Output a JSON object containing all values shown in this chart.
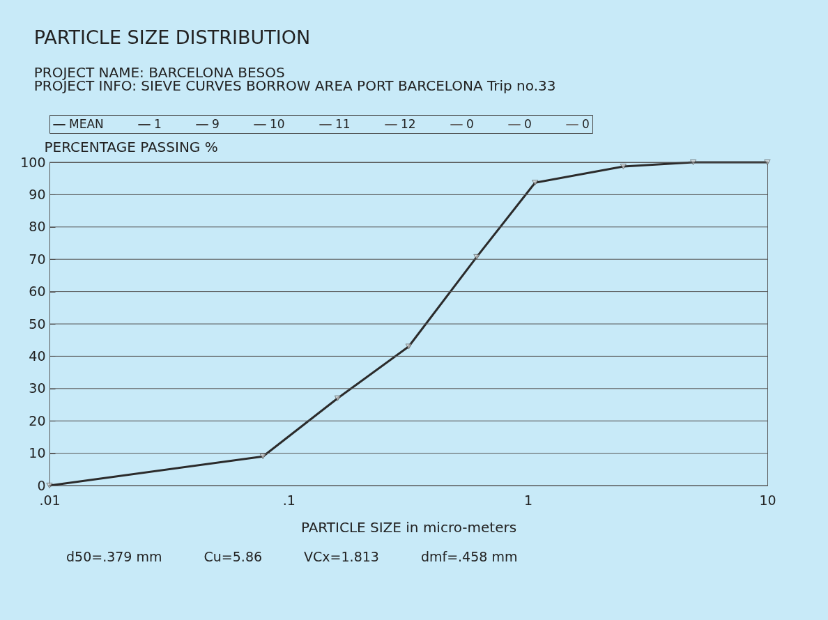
{
  "chart_data": {
    "type": "line",
    "title": "PARTICLE SIZE DISTRIBUTION",
    "subtitle": "PROJECT NAME: BARCELONA BESOS\nPROJECT INFO: SIEVE CURVES BORROW AREA PORT BARCELONA Trip no.33",
    "xlabel": "PARTICLE SIZE  in micro-meters",
    "ylabel": "PERCENTAGE PASSING %",
    "log": "x",
    "x": [
      0.01,
      0.078,
      0.16,
      0.317,
      0.61,
      1.07,
      2.5,
      4.9,
      10
    ],
    "series": [
      {
        "name": "MEAN",
        "color": "#2b2b2b",
        "values": [
          0,
          9,
          27,
          43,
          70.7,
          93.7,
          98.7,
          100,
          100
        ]
      },
      {
        "name": "1",
        "color": "#3a3a3a",
        "values": [
          null,
          null,
          null,
          null,
          null,
          null,
          null,
          null,
          null
        ]
      },
      {
        "name": "9",
        "color": "#444444",
        "values": [
          null,
          null,
          null,
          null,
          null,
          null,
          null,
          null,
          null
        ]
      },
      {
        "name": "10",
        "color": "#4d4d4d",
        "values": [
          null,
          null,
          null,
          null,
          null,
          null,
          null,
          null,
          null
        ]
      },
      {
        "name": "11",
        "color": "#555555",
        "values": [
          null,
          null,
          null,
          null,
          null,
          null,
          null,
          null,
          null
        ]
      },
      {
        "name": "12",
        "color": "#5e5e5e",
        "values": [
          null,
          null,
          null,
          null,
          null,
          null,
          null,
          null,
          null
        ]
      },
      {
        "name": "0",
        "color": "#666666",
        "values": [
          null,
          null,
          null,
          null,
          null,
          null,
          null,
          null,
          null
        ]
      },
      {
        "name": "0",
        "color": "#6e6e6e",
        "values": [
          null,
          null,
          null,
          null,
          null,
          null,
          null,
          null,
          null
        ]
      },
      {
        "name": "0",
        "color": "#777777",
        "values": [
          null,
          null,
          null,
          null,
          null,
          null,
          null,
          null,
          null
        ]
      }
    ],
    "xlim": [
      0.01,
      10
    ],
    "xticks": [
      {
        "value": 0.01,
        "label": ".01"
      },
      {
        "value": 0.1,
        "label": ".1"
      },
      1,
      10
    ],
    "ylim": [
      0,
      100
    ],
    "yticks": [
      0,
      10,
      20,
      30,
      40,
      50,
      60,
      70,
      80,
      90,
      100
    ],
    "grid": "y",
    "legend": "top",
    "marker": "triangle",
    "line_style": "solid",
    "annotations": [
      "d50=.379 mm",
      "Cu=5.86",
      "VCx=1.813",
      "dmf=.458 mm"
    ]
  }
}
